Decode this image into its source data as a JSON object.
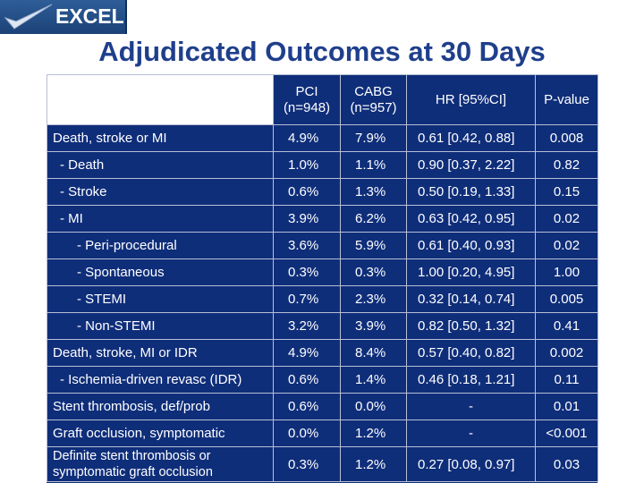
{
  "logo": {
    "text": "EXCEL"
  },
  "title": "Adjudicated Outcomes at 30 Days",
  "header": {
    "pci_line1": "PCI",
    "pci_line2": "(n=948)",
    "cabg_line1": "CABG",
    "cabg_line2": "(n=957)",
    "hr": "HR [95%CI]",
    "pvalue": "P-value"
  },
  "rows": [
    {
      "label": "Death, stroke or MI",
      "pci": "4.9%",
      "cabg": "7.9%",
      "hr": "0.61 [0.42, 0.88]",
      "p": "0.008"
    },
    {
      "label": "- Death",
      "pci": "1.0%",
      "cabg": "1.1%",
      "hr": "0.90 [0.37, 2.22]",
      "p": "0.82"
    },
    {
      "label": "- Stroke",
      "pci": "0.6%",
      "cabg": "1.3%",
      "hr": "0.50 [0.19, 1.33]",
      "p": "0.15"
    },
    {
      "label": "- MI",
      "pci": "3.9%",
      "cabg": "6.2%",
      "hr": "0.63 [0.42, 0.95]",
      "p": "0.02"
    },
    {
      "label": "- Peri-procedural",
      "pci": "3.6%",
      "cabg": "5.9%",
      "hr": "0.61 [0.40, 0.93]",
      "p": "0.02"
    },
    {
      "label": "- Spontaneous",
      "pci": "0.3%",
      "cabg": "0.3%",
      "hr": "1.00 [0.20, 4.95]",
      "p": "1.00"
    },
    {
      "label": "- STEMI",
      "pci": "0.7%",
      "cabg": "2.3%",
      "hr": "0.32 [0.14, 0.74]",
      "p": "0.005"
    },
    {
      "label": "- Non-STEMI",
      "pci": "3.2%",
      "cabg": "3.9%",
      "hr": "0.82 [0.50, 1.32]",
      "p": "0.41"
    },
    {
      "label": "Death, stroke, MI or IDR",
      "pci": "4.9%",
      "cabg": "8.4%",
      "hr": "0.57 [0.40, 0.82]",
      "p": "0.002"
    },
    {
      "label": "- Ischemia-driven revasc (IDR)",
      "pci": "0.6%",
      "cabg": "1.4%",
      "hr": "0.46 [0.18, 1.21]",
      "p": "0.11"
    },
    {
      "label": "Stent thrombosis, def/prob",
      "pci": "0.6%",
      "cabg": "0.0%",
      "hr": "-",
      "p": "0.01"
    },
    {
      "label": "Graft occlusion, symptomatic",
      "pci": "0.0%",
      "cabg": "1.2%",
      "hr": "-",
      "p": "<0.001"
    },
    {
      "label": "Definite stent thrombosis or symptomatic graft occlusion",
      "pci": "0.3%",
      "cabg": "1.2%",
      "hr": "0.27 [0.08, 0.97]",
      "p": "0.03"
    }
  ]
}
